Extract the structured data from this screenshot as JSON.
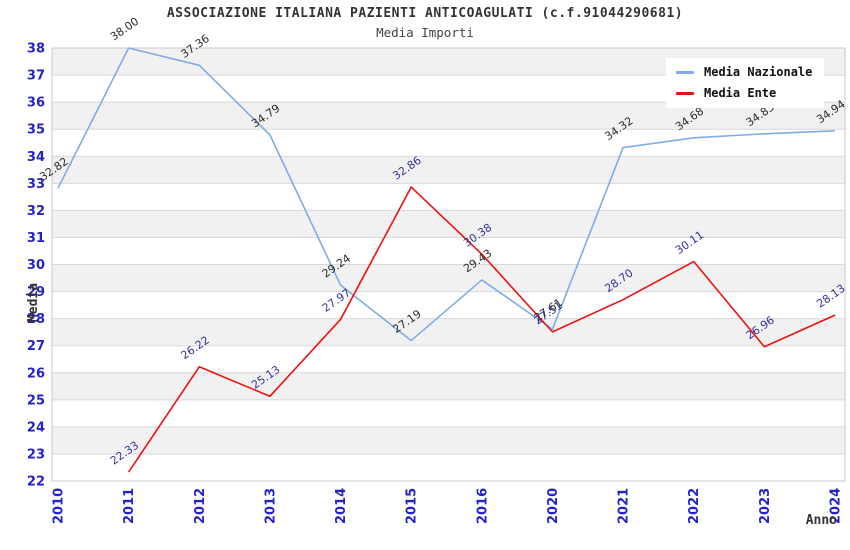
{
  "header": {
    "title": "ASSOCIAZIONE ITALIANA PAZIENTI ANTICOAGULATI (c.f.91044290681)",
    "subtitle": "Media Importi"
  },
  "legend": {
    "items": [
      {
        "label": "Media Nazionale",
        "color": "#7FACE3"
      },
      {
        "label": "Media Ente",
        "color": "#EE1111"
      }
    ]
  },
  "colors": {
    "tick_label_blue": "#2323CC",
    "band_gray": "#F1F1F1",
    "gridline": "#D9D9D9",
    "plot_border": "#C9C9C9",
    "label_dark": "#2B2B2B",
    "label_navy": "#333399"
  },
  "chart_data": {
    "type": "line",
    "title": "ASSOCIAZIONE ITALIANA PAZIENTI ANTICOAGULATI (c.f.91044290681)",
    "subtitle": "Media Importi",
    "xlabel": "Anno",
    "ylabel": "Media",
    "categories": [
      "2010",
      "2011",
      "2012",
      "2013",
      "2014",
      "2015",
      "2016",
      "2020",
      "2021",
      "2022",
      "2023",
      "2024"
    ],
    "ylim": [
      22,
      38
    ],
    "ytick_step": 1,
    "grid": true,
    "banded_background": true,
    "legend_position": "top-right",
    "series": [
      {
        "name": "Media Nazionale",
        "color": "#7FACE3",
        "label_color": "#2B2B2B",
        "values": [
          32.82,
          38.0,
          37.36,
          34.79,
          29.24,
          27.19,
          29.43,
          27.61,
          34.32,
          34.68,
          34.83,
          34.94
        ]
      },
      {
        "name": "Media Ente",
        "color": "#EE1111",
        "label_color": "#333399",
        "values": [
          null,
          22.33,
          26.22,
          25.13,
          27.97,
          32.86,
          30.38,
          27.51,
          28.7,
          30.11,
          26.96,
          28.13
        ]
      }
    ]
  }
}
